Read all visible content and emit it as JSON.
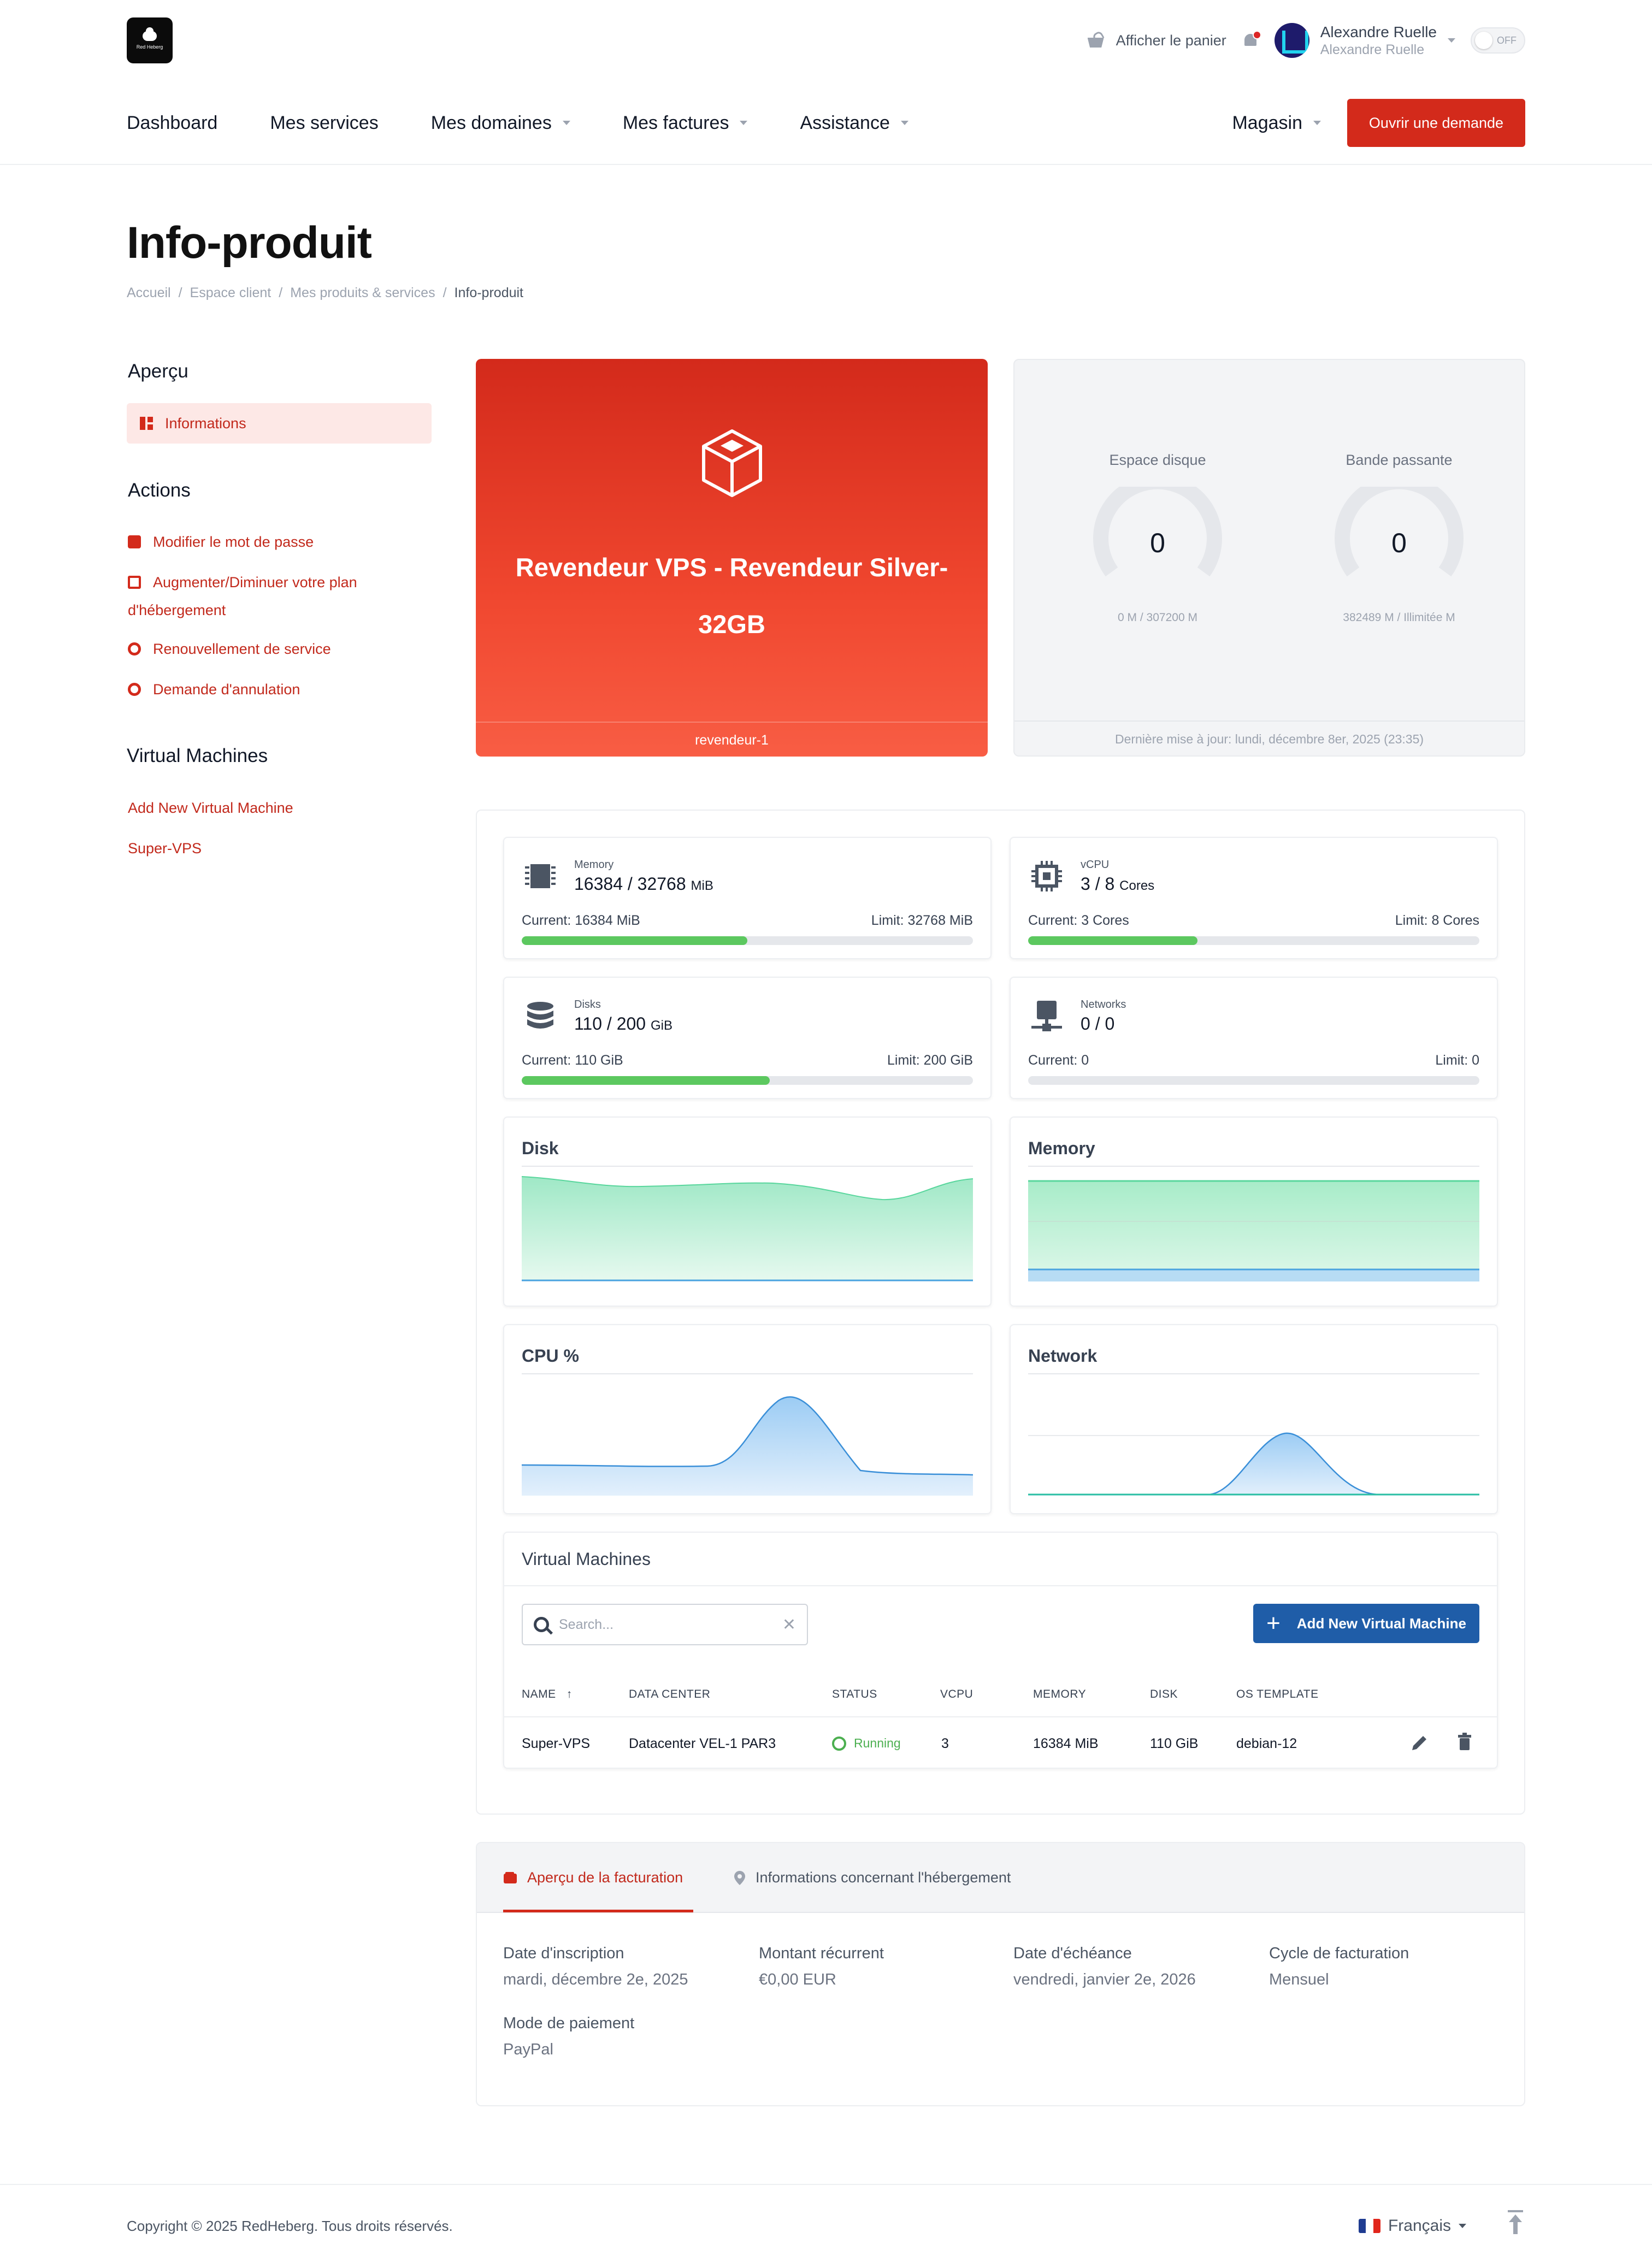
{
  "header": {
    "brand": "Red Heberg",
    "cart_label": "Afficher le panier",
    "user_name": "Alexandre Ruelle",
    "user_sub": "Alexandre Ruelle",
    "toggle_label": "OFF"
  },
  "nav": {
    "items": [
      {
        "label": "Dashboard",
        "dropdown": false
      },
      {
        "label": "Mes services",
        "dropdown": false
      },
      {
        "label": "Mes domaines",
        "dropdown": true
      },
      {
        "label": "Mes factures",
        "dropdown": true
      },
      {
        "label": "Assistance",
        "dropdown": true
      }
    ],
    "store_label": "Magasin",
    "cta_label": "Ouvrir une demande"
  },
  "page": {
    "title": "Info-produit",
    "breadcrumb": [
      "Accueil",
      "Espace client",
      "Mes produits & services",
      "Info-produit"
    ]
  },
  "sidebar": {
    "overview_heading": "Aperçu",
    "overview_active": "Informations",
    "actions_heading": "Actions",
    "actions": [
      "Modifier le mot de passe",
      "Augmenter/Diminuer votre plan",
      "d'hébergement",
      "Renouvellement de service",
      "Demande d'annulation"
    ],
    "vm_heading": "Virtual Machines",
    "vm_links": [
      "Add New Virtual Machine",
      "Super-VPS"
    ]
  },
  "product": {
    "name_line1": "Revendeur VPS - Revendeur Silver-",
    "name_line2": "32GB",
    "hostname": "revendeur-1"
  },
  "usage": {
    "disk_label": "Espace disque",
    "disk_value": "0",
    "disk_sub": "0 M / 307200 M",
    "disk_fraction": 0,
    "bw_label": "Bande passante",
    "bw_value": "0",
    "bw_sub": "382489 M / Illimitée M",
    "bw_fraction": 0,
    "updated": "Dernière mise à jour: lundi, décembre 8er, 2025 (23:35)"
  },
  "resources": [
    {
      "icon": "memory-icon",
      "label": "Memory",
      "value": "16384 / 32768",
      "unit": "MiB",
      "current": "Current: 16384 MiB",
      "limit": "Limit: 32768 MiB",
      "fraction": 0.5
    },
    {
      "icon": "cpu-icon",
      "label": "vCPU",
      "value": "3 / 8",
      "unit": "Cores",
      "current": "Current: 3 Cores",
      "limit": "Limit: 8 Cores",
      "fraction": 0.375
    },
    {
      "icon": "disks-icon",
      "label": "Disks",
      "value": "110 / 200",
      "unit": "GiB",
      "current": "Current: 110 GiB",
      "limit": "Limit: 200 GiB",
      "fraction": 0.55
    },
    {
      "icon": "network-icon",
      "label": "Networks",
      "value": "0 / 0",
      "unit": "",
      "current": "Current: 0",
      "limit": "Limit: 0",
      "fraction": 0
    }
  ],
  "charts": {
    "disk_title": "Disk",
    "memory_title": "Memory",
    "cpu_title": "CPU %",
    "network_title": "Network"
  },
  "vms": {
    "heading": "Virtual Machines",
    "search_placeholder": "Search...",
    "add_label": "Add New Virtual Machine",
    "columns": [
      "NAME",
      "DATA CENTER",
      "STATUS",
      "VCPU",
      "MEMORY",
      "DISK",
      "OS TEMPLATE"
    ],
    "sort_indicator": "↑",
    "rows": [
      {
        "name": "Super-VPS",
        "datacenter": "Datacenter VEL-1 PAR3",
        "status": "Running",
        "vcpu": "3",
        "memory": "16384 MiB",
        "disk": "110 GiB",
        "os": "debian-12"
      }
    ]
  },
  "billing": {
    "tab_active": "Aperçu de la facturation",
    "tab_other": "Informations concernant l'hébergement",
    "fields": [
      {
        "label": "Date d'inscription",
        "value": "mardi, décembre 2e, 2025"
      },
      {
        "label": "Montant récurrent",
        "value": "€0,00 EUR"
      },
      {
        "label": "Date d'échéance",
        "value": "vendredi, janvier 2e, 2026"
      },
      {
        "label": "Cycle de facturation",
        "value": "Mensuel"
      },
      {
        "label": "Mode de paiement",
        "value": "PayPal"
      }
    ]
  },
  "footer": {
    "copyright": "Copyright © 2025 RedHeberg. Tous droits réservés.",
    "language": "Français"
  },
  "colors": {
    "brand_red": "#d32a1b",
    "accent_blue": "#1f5da8",
    "success_green": "#5cc85f"
  }
}
